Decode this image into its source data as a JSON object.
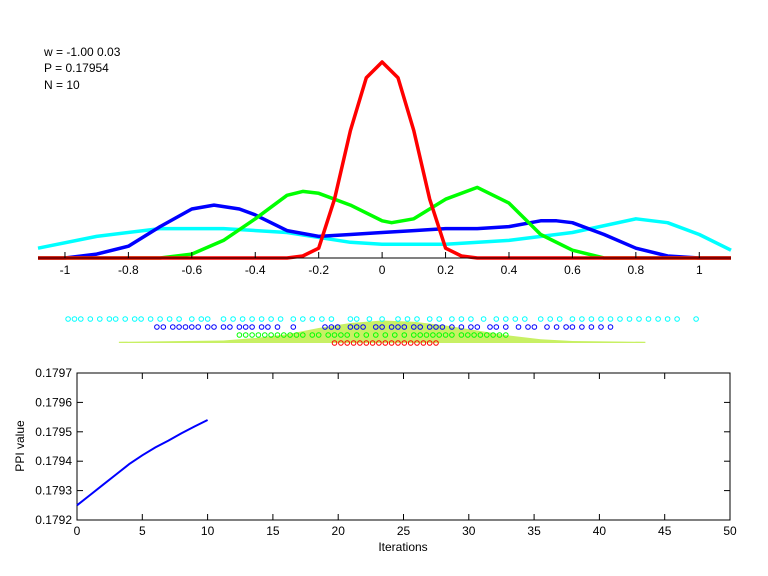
{
  "annotations": {
    "w": "w = -1.00  0.03",
    "p": "P = 0.17954",
    "n": "N = 10"
  },
  "colors": {
    "red": "#ff0000",
    "green": "#00ff00",
    "blue": "#0000ff",
    "cyan": "#00ffff",
    "density": "#c8f064"
  },
  "chart_data": [
    {
      "type": "line",
      "xlim": [
        -1.085,
        1.1
      ],
      "ylim": [
        0,
        1.05
      ],
      "xticks": [
        -1,
        -0.8,
        -0.6,
        -0.4,
        -0.2,
        0,
        0.2,
        0.4,
        0.6,
        0.8,
        1
      ],
      "xtick_labels": [
        "-1",
        "-0.8",
        "-0.6",
        "-0.4",
        "-0.2",
        "0",
        "0.2",
        "0.4",
        "0.6",
        "0.8",
        "1"
      ],
      "grid": false,
      "series": [
        {
          "color": "#00ffff",
          "x": [
            -1.085,
            -0.9,
            -0.7,
            -0.5,
            -0.3,
            -0.1,
            0,
            0.2,
            0.4,
            0.6,
            0.8,
            0.9,
            1.0,
            1.1
          ],
          "y": [
            0.05,
            0.11,
            0.15,
            0.15,
            0.13,
            0.08,
            0.07,
            0.07,
            0.09,
            0.13,
            0.2,
            0.18,
            0.12,
            0.04
          ]
        },
        {
          "color": "#0000ff",
          "x": [
            -1.085,
            -1.0,
            -0.9,
            -0.8,
            -0.7,
            -0.6,
            -0.53,
            -0.45,
            -0.4,
            -0.3,
            -0.2,
            -0.1,
            0,
            0.1,
            0.2,
            0.3,
            0.4,
            0.5,
            0.55,
            0.6,
            0.7,
            0.8,
            0.9,
            1.0,
            1.1
          ],
          "y": [
            0,
            0,
            0.02,
            0.06,
            0.16,
            0.25,
            0.27,
            0.25,
            0.22,
            0.14,
            0.11,
            0.12,
            0.13,
            0.14,
            0.15,
            0.15,
            0.16,
            0.19,
            0.19,
            0.18,
            0.12,
            0.05,
            0.01,
            0,
            0
          ]
        },
        {
          "color": "#00ff00",
          "x": [
            -1.085,
            -0.7,
            -0.6,
            -0.5,
            -0.4,
            -0.3,
            -0.25,
            -0.2,
            -0.1,
            0,
            0.03,
            0.1,
            0.2,
            0.3,
            0.4,
            0.5,
            0.6,
            0.7,
            1.1
          ],
          "y": [
            0,
            0,
            0.02,
            0.09,
            0.2,
            0.32,
            0.34,
            0.33,
            0.27,
            0.19,
            0.18,
            0.2,
            0.3,
            0.36,
            0.28,
            0.12,
            0.04,
            0,
            0
          ]
        },
        {
          "color": "#ff0000",
          "x": [
            -1.085,
            -0.3,
            -0.25,
            -0.2,
            -0.15,
            -0.1,
            -0.05,
            0,
            0.05,
            0.1,
            0.15,
            0.2,
            0.25,
            0.3,
            1.1
          ],
          "y": [
            0,
            0,
            0.01,
            0.05,
            0.3,
            0.65,
            0.92,
            1.0,
            0.92,
            0.65,
            0.3,
            0.05,
            0.01,
            0,
            0
          ]
        }
      ]
    },
    {
      "type": "scatter",
      "rows": [
        {
          "color": "#00ffff",
          "x": [
            -0.99,
            -0.97,
            -0.95,
            -0.92,
            -0.89,
            -0.86,
            -0.84,
            -0.81,
            -0.78,
            -0.76,
            -0.73,
            -0.7,
            -0.67,
            -0.64,
            -0.6,
            -0.57,
            -0.55,
            -0.5,
            -0.47,
            -0.44,
            -0.41,
            -0.38,
            -0.35,
            -0.32,
            -0.28,
            -0.25,
            -0.22,
            -0.19,
            -0.16,
            -0.1,
            -0.08,
            -0.04,
            0,
            0.05,
            0.08,
            0.11,
            0.15,
            0.18,
            0.22,
            0.25,
            0.28,
            0.32,
            0.36,
            0.39,
            0.42,
            0.45,
            0.5,
            0.53,
            0.56,
            0.6,
            0.63,
            0.66,
            0.69,
            0.72,
            0.75,
            0.78,
            0.81,
            0.84,
            0.87,
            0.9,
            0.93,
            0.99
          ]
        },
        {
          "color": "#0000ff",
          "x": [
            -0.71,
            -0.69,
            -0.66,
            -0.64,
            -0.62,
            -0.6,
            -0.58,
            -0.55,
            -0.53,
            -0.5,
            -0.48,
            -0.45,
            -0.43,
            -0.41,
            -0.38,
            -0.36,
            -0.33,
            -0.28,
            -0.18,
            -0.16,
            -0.14,
            -0.1,
            -0.08,
            -0.06,
            -0.02,
            0,
            0.03,
            0.05,
            0.07,
            0.1,
            0.12,
            0.15,
            0.17,
            0.19,
            0.22,
            0.25,
            0.28,
            0.3,
            0.34,
            0.36,
            0.39,
            0.43,
            0.46,
            0.48,
            0.52,
            0.55,
            0.58,
            0.6,
            0.63,
            0.66,
            0.69,
            0.72
          ]
        },
        {
          "color": "#00ff00",
          "x": [
            -0.45,
            -0.43,
            -0.41,
            -0.39,
            -0.37,
            -0.35,
            -0.33,
            -0.31,
            -0.29,
            -0.27,
            -0.25,
            -0.22,
            -0.2,
            -0.17,
            -0.15,
            -0.13,
            -0.11,
            -0.08,
            -0.05,
            -0.02,
            0.01,
            0.04,
            0.07,
            0.1,
            0.12,
            0.14,
            0.16,
            0.18,
            0.2,
            0.22,
            0.25,
            0.27,
            0.29,
            0.31,
            0.33,
            0.35,
            0.37,
            0.39
          ]
        },
        {
          "color": "#ff0000",
          "x": [
            -0.15,
            -0.13,
            -0.11,
            -0.09,
            -0.07,
            -0.05,
            -0.03,
            -0.01,
            0.01,
            0.03,
            0.05,
            0.07,
            0.09,
            0.11,
            0.13,
            0.15,
            0.17
          ]
        }
      ],
      "density": {
        "color": "#c8f064",
        "x": [
          -0.83,
          -0.5,
          -0.4,
          -0.3,
          -0.2,
          -0.1,
          0,
          0.1,
          0.2,
          0.3,
          0.4,
          0.5,
          0.6,
          0.83
        ],
        "y": [
          0.05,
          0.1,
          0.2,
          0.35,
          0.6,
          0.8,
          0.9,
          0.85,
          0.7,
          0.5,
          0.3,
          0.15,
          0.08,
          0.05
        ]
      }
    },
    {
      "type": "line",
      "xlabel": "Iterations",
      "ylabel": "PPI value",
      "xlim": [
        0,
        50
      ],
      "ylim": [
        0.1792,
        0.1797
      ],
      "xticks": [
        0,
        5,
        10,
        15,
        20,
        25,
        30,
        35,
        40,
        45,
        50
      ],
      "xtick_labels": [
        "0",
        "5",
        "10",
        "15",
        "20",
        "25",
        "30",
        "35",
        "40",
        "45",
        "50"
      ],
      "yticks": [
        0.1792,
        0.1793,
        0.1794,
        0.1795,
        0.1796,
        0.1797
      ],
      "ytick_labels": [
        "0.1792",
        "0.1793",
        "0.1794",
        "0.1795",
        "0.1796",
        "0.1797"
      ],
      "grid": false,
      "series": [
        {
          "color": "#0000ff",
          "x": [
            0,
            1,
            2,
            3,
            4,
            5,
            6,
            7,
            8,
            9,
            10
          ],
          "y": [
            0.17925,
            0.179285,
            0.17932,
            0.179355,
            0.17939,
            0.17942,
            0.179447,
            0.17947,
            0.179495,
            0.179518,
            0.17954
          ]
        }
      ]
    }
  ]
}
